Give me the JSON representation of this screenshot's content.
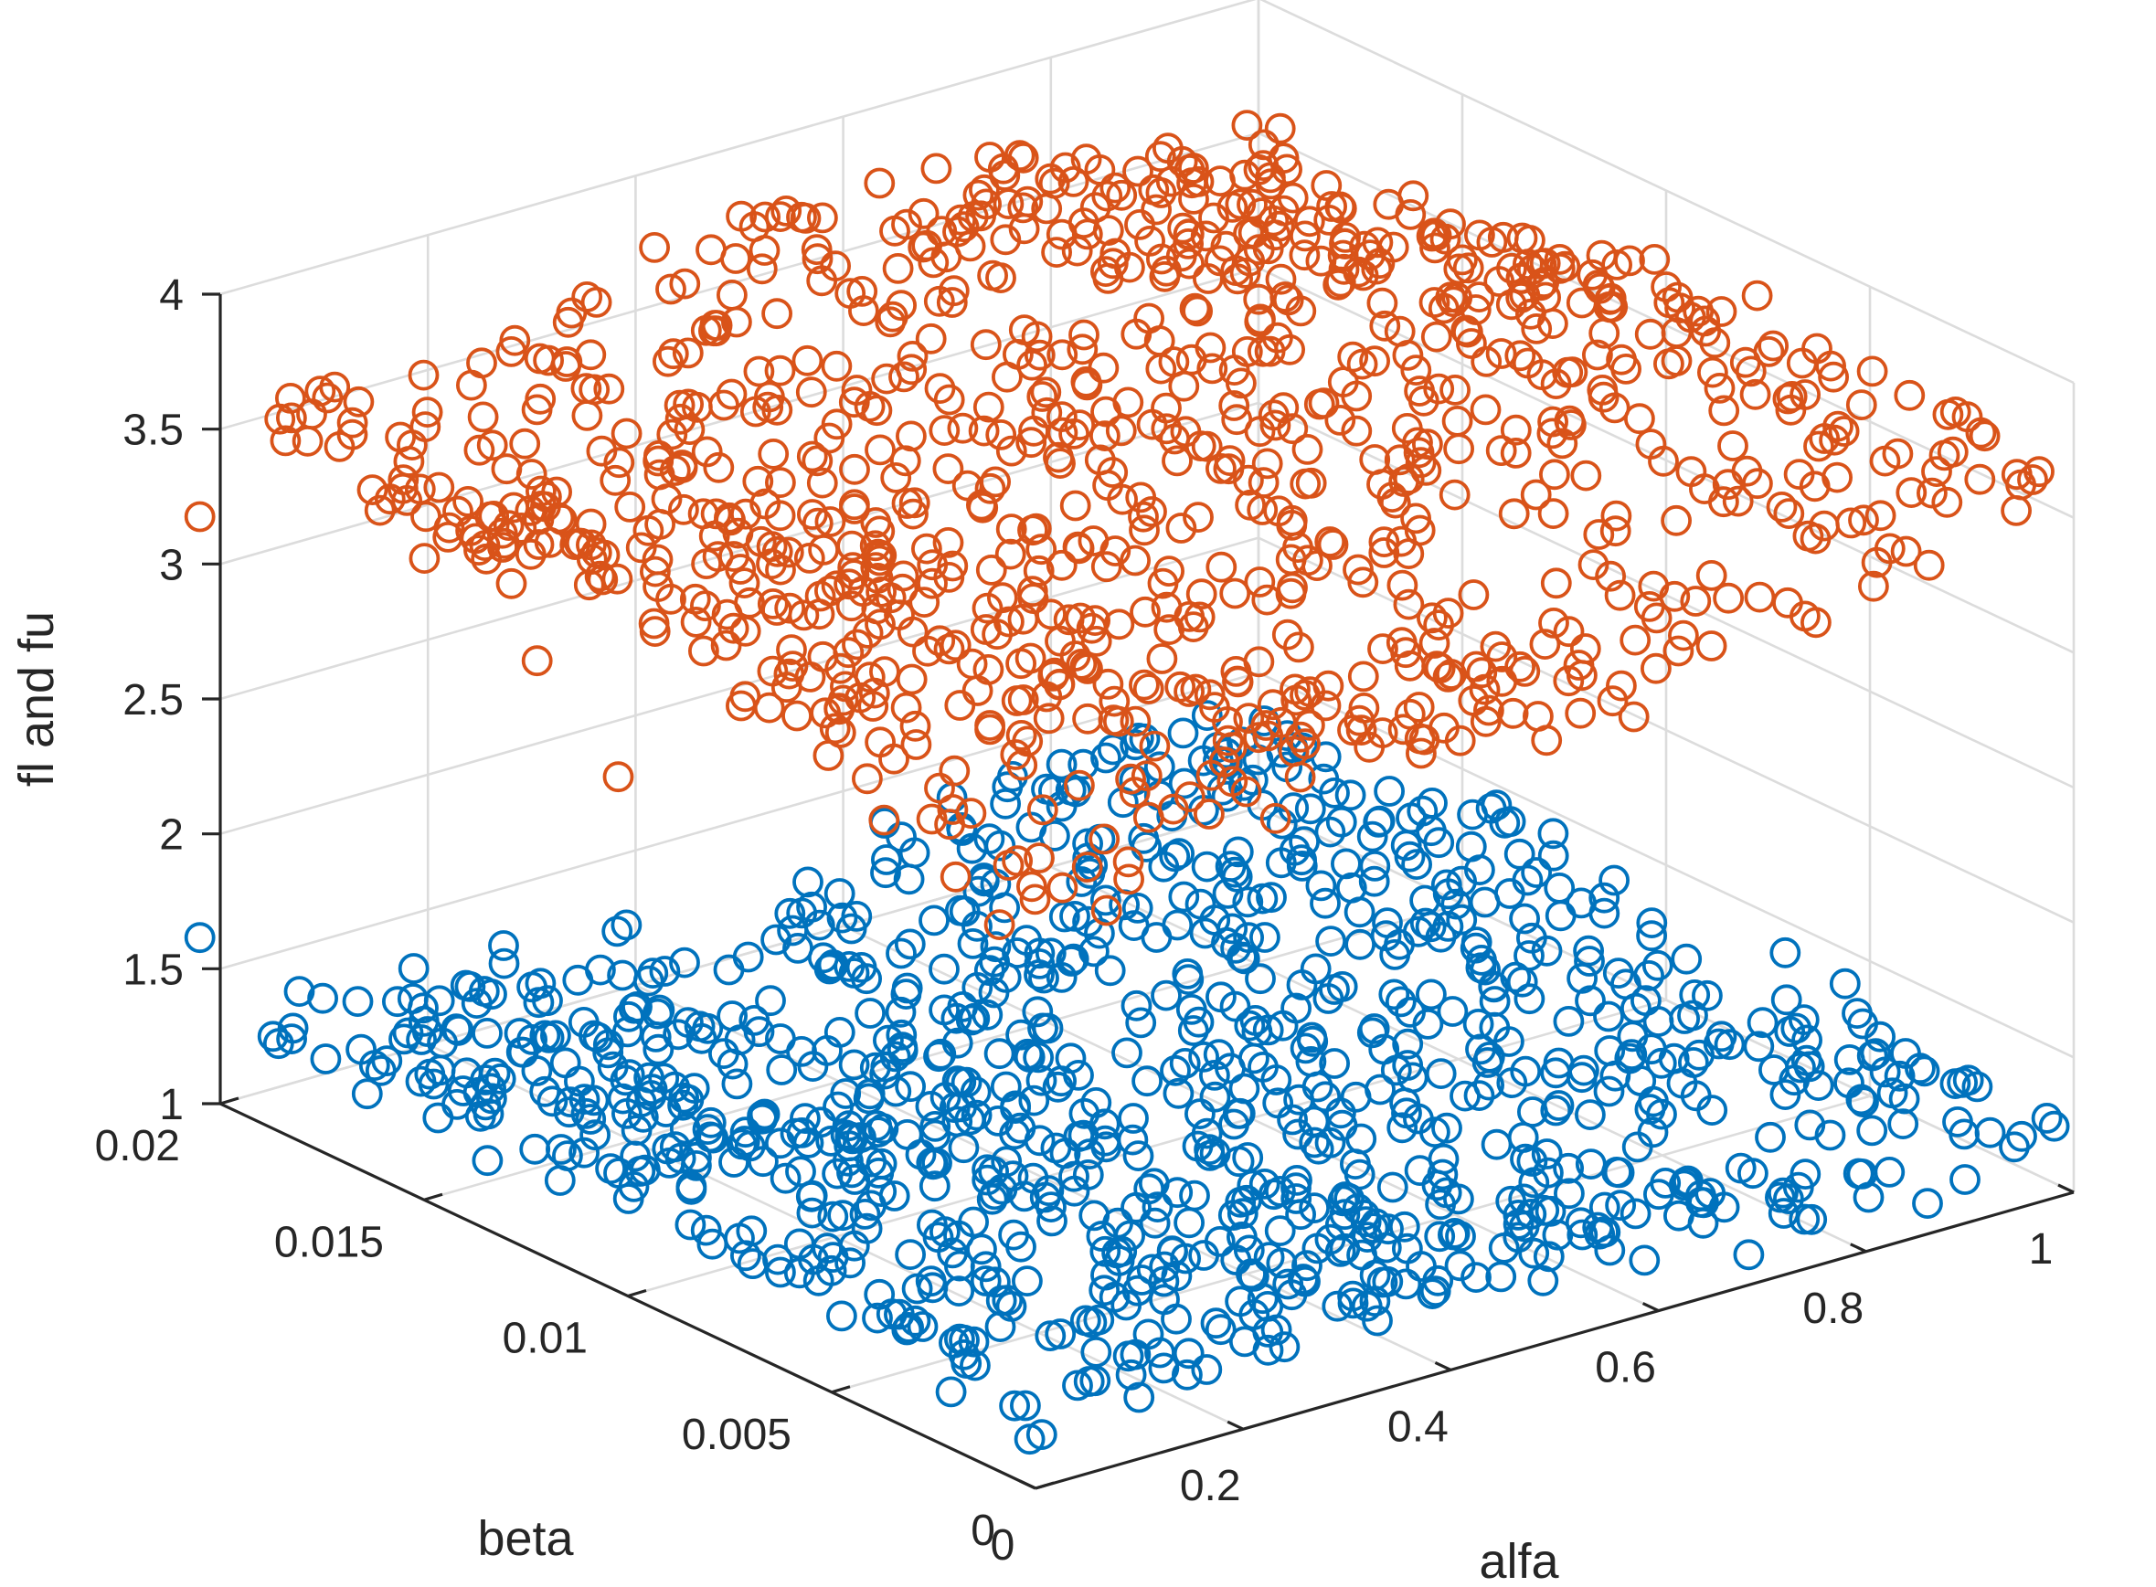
{
  "chart_data": {
    "type": "scatter",
    "view": "3d",
    "xlabel": "alfa",
    "ylabel": "beta",
    "zlabel": "fl and fu",
    "xlim": [
      0,
      1
    ],
    "ylim": [
      0,
      0.02
    ],
    "zlim": [
      1,
      4
    ],
    "grid": true,
    "x_ticks": [
      {
        "value": 0,
        "label": "0"
      },
      {
        "value": 0.2,
        "label": "0.2"
      },
      {
        "value": 0.4,
        "label": "0.4"
      },
      {
        "value": 0.6,
        "label": "0.6"
      },
      {
        "value": 0.8,
        "label": "0.8"
      },
      {
        "value": 1,
        "label": "1"
      }
    ],
    "y_ticks": [
      {
        "value": 0,
        "label": "0"
      },
      {
        "value": 0.005,
        "label": "0.005"
      },
      {
        "value": 0.01,
        "label": "0.01"
      },
      {
        "value": 0.015,
        "label": "0.015"
      },
      {
        "value": 0.02,
        "label": "0.02"
      }
    ],
    "z_ticks": [
      {
        "value": 1,
        "label": "1"
      },
      {
        "value": 1.5,
        "label": "1.5"
      },
      {
        "value": 2,
        "label": "2"
      },
      {
        "value": 2.5,
        "label": "2.5"
      },
      {
        "value": 3,
        "label": "3"
      },
      {
        "value": 3.5,
        "label": "3.5"
      },
      {
        "value": 4,
        "label": "4"
      }
    ],
    "series": [
      {
        "name": "fl",
        "color": "#0072bd",
        "marker": "circle-open",
        "n_points": 1000,
        "approx_model": "z ≈ 1.29 + 0.12·alfa − 3·beta",
        "seed": 7,
        "outliers": [
          {
            "alfa": 0.0,
            "beta": 0.0205,
            "z": 1.58
          },
          {
            "alfa": 0.34,
            "beta": 0.0008,
            "z": 2.02
          },
          {
            "alfa": 0.45,
            "beta": 0.0002,
            "z": 2.2
          }
        ]
      },
      {
        "name": "fu",
        "color": "#d95319",
        "marker": "circle-open",
        "n_points": 1000,
        "approx_model": "z ≈ 3.55 − 0.7·beta·1000/20·(1−alfa)·… (surface from ~2.7 to ~3.95)",
        "seed": 11,
        "outliers": [
          {
            "alfa": 0.0,
            "beta": 0.0205,
            "z": 3.14
          },
          {
            "alfa": 0.02,
            "beta": 0.0155,
            "z": 3.32
          },
          {
            "alfa": 0.05,
            "beta": 0.0135,
            "z": 3.05
          },
          {
            "alfa": 0.03,
            "beta": 0.011,
            "z": 2.82
          }
        ]
      }
    ]
  }
}
